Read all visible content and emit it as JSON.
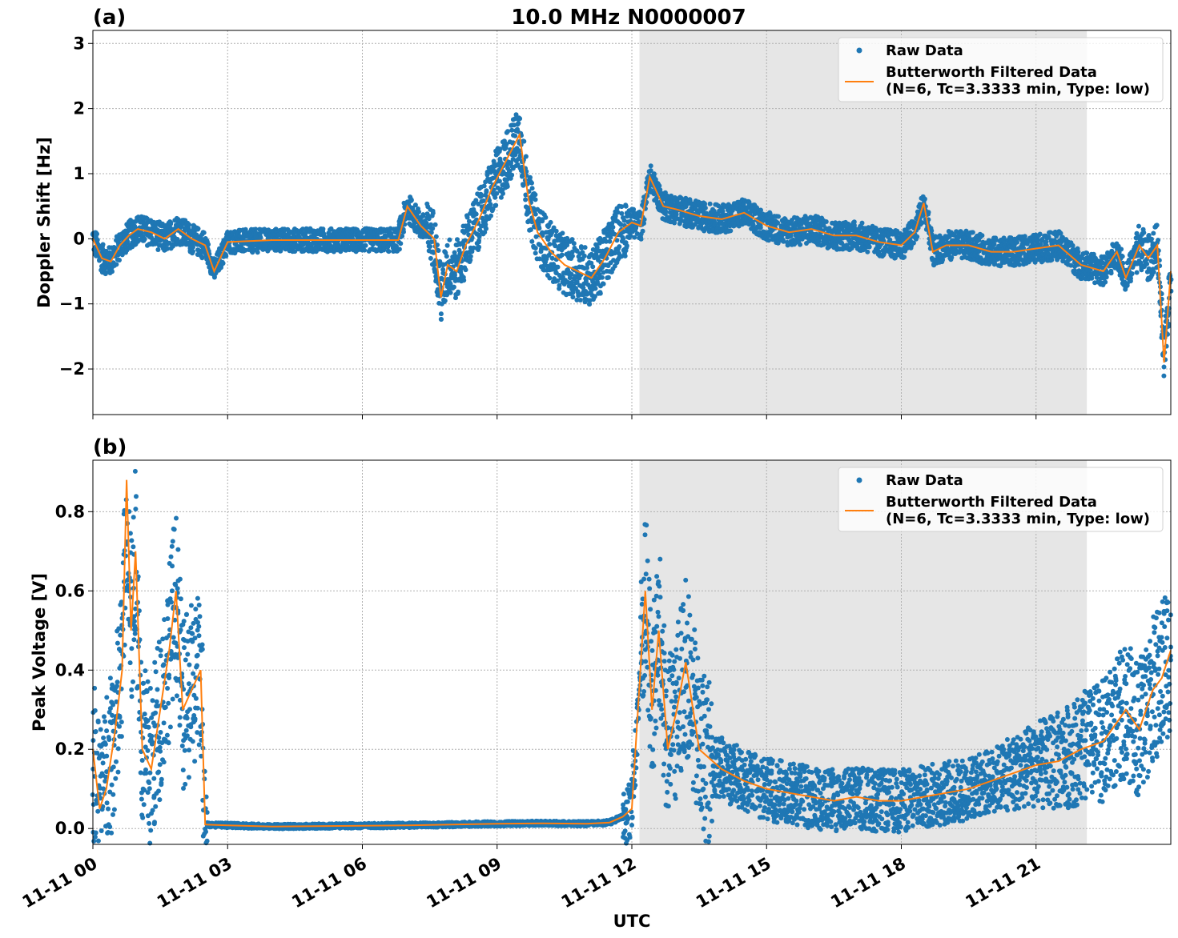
{
  "figure": {
    "title": "10.0 MHz N0000007",
    "xlabel": "UTC"
  },
  "colors": {
    "raw": "#1f77b4",
    "filtered": "#ff7f0e",
    "shade": "#e6e6e6",
    "grid": "#b0b0b0"
  },
  "chart_data": [
    {
      "type": "scatter",
      "panel": "(a)",
      "ylabel": "Doppler Shift [Hz]",
      "xlim": [
        0,
        24
      ],
      "ylim": [
        -2.7,
        3.2
      ],
      "x_ticks": [
        "11-11 00",
        "11-11 03",
        "11-11 06",
        "11-11 09",
        "11-11 12",
        "11-11 15",
        "11-11 18",
        "11-11 21"
      ],
      "x_tick_values": [
        0,
        3,
        6,
        9,
        12,
        15,
        18,
        21
      ],
      "y_ticks": [
        "−2",
        "−1",
        "0",
        "1",
        "2",
        "3"
      ],
      "y_tick_values": [
        -2,
        -1,
        0,
        1,
        2,
        3
      ],
      "grid": true,
      "shaded_span_hours": [
        12.17,
        22.13
      ],
      "legend": {
        "placement": "top-right",
        "entries": [
          "Raw Data",
          "Butterworth Filtered Data",
          "(N=6, Tc=3.3333 min, Type: low)"
        ]
      },
      "series": [
        {
          "name": "Butterworth Filtered Data",
          "kind": "line",
          "x": [
            0,
            0.2,
            0.4,
            0.6,
            0.8,
            1.0,
            1.3,
            1.6,
            1.9,
            2.2,
            2.5,
            2.7,
            3.0,
            4.0,
            5.0,
            6.0,
            6.8,
            7.0,
            7.3,
            7.6,
            7.75,
            7.9,
            8.1,
            8.3,
            8.6,
            8.9,
            9.2,
            9.5,
            9.7,
            9.9,
            10.2,
            10.5,
            10.8,
            11.1,
            11.4,
            11.7,
            12.0,
            12.2,
            12.4,
            12.7,
            13.0,
            13.5,
            14.0,
            14.5,
            15.0,
            15.5,
            16.0,
            16.5,
            17.0,
            17.5,
            18.0,
            18.3,
            18.5,
            18.7,
            19.0,
            19.5,
            20.0,
            20.5,
            21.0,
            21.5,
            22.0,
            22.5,
            22.8,
            23.0,
            23.3,
            23.5,
            23.7,
            23.85,
            24.0
          ],
          "y": [
            0.0,
            -0.3,
            -0.35,
            -0.1,
            0.05,
            0.15,
            0.1,
            0.0,
            0.15,
            0.0,
            -0.1,
            -0.5,
            -0.05,
            -0.02,
            -0.02,
            -0.02,
            -0.02,
            0.5,
            0.2,
            0.0,
            -0.9,
            -0.4,
            -0.5,
            -0.1,
            0.3,
            0.8,
            1.2,
            1.6,
            0.6,
            0.1,
            -0.2,
            -0.4,
            -0.5,
            -0.6,
            -0.3,
            0.1,
            0.25,
            0.2,
            0.95,
            0.5,
            0.45,
            0.35,
            0.3,
            0.4,
            0.2,
            0.1,
            0.15,
            0.05,
            0.05,
            -0.05,
            -0.1,
            0.1,
            0.55,
            -0.2,
            -0.1,
            -0.1,
            -0.2,
            -0.2,
            -0.15,
            -0.1,
            -0.4,
            -0.5,
            -0.2,
            -0.6,
            -0.1,
            -0.3,
            -0.1,
            -1.9,
            -0.5
          ]
        }
      ]
    },
    {
      "type": "scatter",
      "panel": "(b)",
      "ylabel": "Peak Voltage [V]",
      "xlim": [
        0,
        24
      ],
      "ylim": [
        -0.04,
        0.93
      ],
      "x_ticks": [
        "11-11 00",
        "11-11 03",
        "11-11 06",
        "11-11 09",
        "11-11 12",
        "11-11 15",
        "11-11 18",
        "11-11 21"
      ],
      "x_tick_values": [
        0,
        3,
        6,
        9,
        12,
        15,
        18,
        21
      ],
      "y_ticks": [
        "0.0",
        "0.2",
        "0.4",
        "0.6",
        "0.8"
      ],
      "y_tick_values": [
        0.0,
        0.2,
        0.4,
        0.6,
        0.8
      ],
      "grid": true,
      "shaded_span_hours": [
        12.17,
        22.13
      ],
      "legend": {
        "placement": "top-right",
        "entries": [
          "Raw Data",
          "Butterworth Filtered Data",
          "(N=6, Tc=3.3333 min, Type: low)"
        ]
      },
      "series": [
        {
          "name": "Butterworth Filtered Data",
          "kind": "line",
          "x": [
            0,
            0.15,
            0.3,
            0.5,
            0.65,
            0.75,
            0.85,
            0.95,
            1.1,
            1.3,
            1.5,
            1.7,
            1.85,
            2.0,
            2.2,
            2.4,
            2.5,
            3.0,
            4.0,
            5.0,
            6.0,
            7.0,
            8.0,
            9.0,
            10.0,
            11.0,
            11.5,
            11.8,
            12.0,
            12.3,
            12.45,
            12.6,
            12.8,
            13.0,
            13.2,
            13.5,
            14.0,
            14.5,
            15.0,
            15.5,
            16.0,
            16.5,
            17.0,
            17.5,
            18.0,
            18.5,
            19.0,
            19.5,
            20.0,
            20.5,
            21.0,
            21.5,
            22.0,
            22.5,
            23.0,
            23.3,
            23.6,
            23.8,
            24.0
          ],
          "y": [
            0.2,
            0.05,
            0.1,
            0.25,
            0.4,
            0.88,
            0.5,
            0.7,
            0.2,
            0.15,
            0.3,
            0.45,
            0.6,
            0.3,
            0.35,
            0.4,
            0.01,
            0.008,
            0.005,
            0.006,
            0.007,
            0.008,
            0.01,
            0.012,
            0.013,
            0.012,
            0.015,
            0.03,
            0.05,
            0.6,
            0.3,
            0.5,
            0.2,
            0.3,
            0.42,
            0.2,
            0.15,
            0.12,
            0.1,
            0.09,
            0.08,
            0.07,
            0.08,
            0.07,
            0.07,
            0.08,
            0.09,
            0.1,
            0.12,
            0.14,
            0.16,
            0.17,
            0.2,
            0.22,
            0.3,
            0.25,
            0.35,
            0.38,
            0.45
          ]
        }
      ]
    }
  ]
}
